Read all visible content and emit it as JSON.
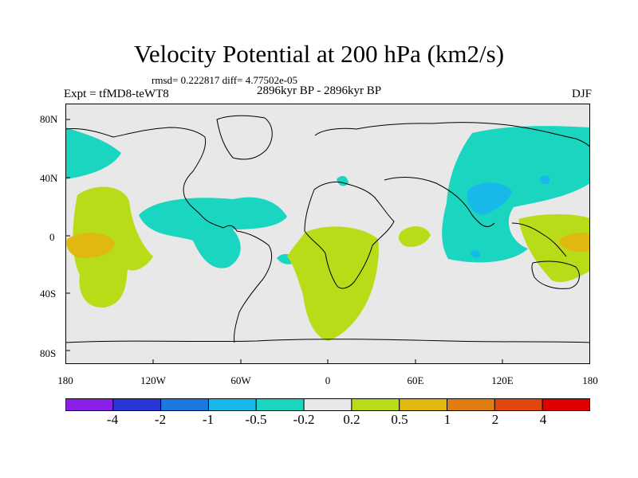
{
  "header": {
    "title": "Velocity Potential at 200 hPa (km2/s)",
    "rmsd": "rmsd= 0.222817 diff= 4.77502e-05",
    "experiment": "Expt = tfMD8-teWT8",
    "period": "2896kyr BP - 2896kyr BP",
    "season": "DJF"
  },
  "axes": {
    "lat_labels": [
      "80N",
      "40N",
      "0",
      "40S",
      "80S"
    ],
    "lon_labels": [
      "180",
      "120W",
      "60W",
      "0",
      "60E",
      "120E",
      "180"
    ]
  },
  "colorbar": {
    "labels": [
      "-4",
      "-2",
      "-1",
      "-0.5",
      "-0.2",
      "0.2",
      "0.5",
      "1",
      "2",
      "4"
    ],
    "colors": [
      "#8a20e8",
      "#2a36d8",
      "#1a7ae0",
      "#18b8e8",
      "#1ad6c0",
      "#e8e8e8",
      "#b8dc18",
      "#e0b810",
      "#e07c10",
      "#e04810",
      "#e00000"
    ]
  },
  "colors": {
    "neutral": "#e8e8e8",
    "neg_weak": "#1ad6c0",
    "neg_mid": "#18b8e8",
    "pos_weak": "#b8dc18",
    "pos_mid": "#e0b810"
  }
}
